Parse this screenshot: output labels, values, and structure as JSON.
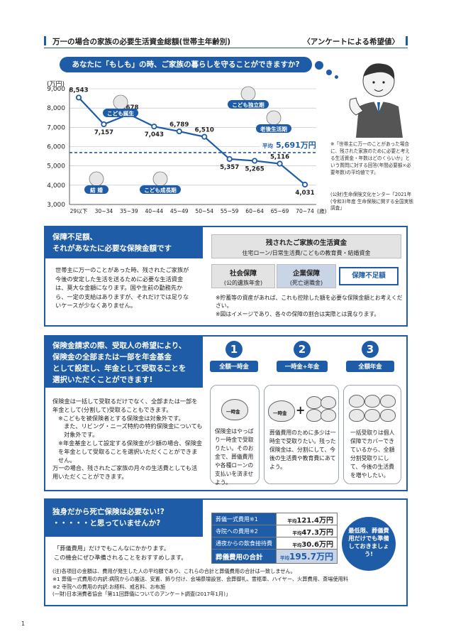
{
  "header": {
    "title": "万一の場合の家族の必要生活資金総額(世帯主年齢別)",
    "subtitle": "〈アンケートによる希望値〉"
  },
  "banner": "あなたに「もしも」の時、ご家族の暮らしを守ることができますか?",
  "chart_data": {
    "type": "line",
    "yunit": "(万円)",
    "ylim": [
      3000,
      9000
    ],
    "yticks": [
      "9,000",
      "8,000",
      "7,000",
      "6,000",
      "5,000",
      "4,000",
      "3,000"
    ],
    "categories": [
      "29以下",
      "30~34",
      "35~39",
      "40~44",
      "45~49",
      "50~54",
      "55~59",
      "60~64",
      "65~69",
      "70~74"
    ],
    "xunit": "(歳)",
    "values": [
      8543,
      7157,
      7678,
      7043,
      6789,
      6510,
      5357,
      5265,
      5116,
      4031
    ],
    "value_labels": [
      "8,543",
      "7,157",
      "7,678",
      "7,043",
      "6,789",
      "6,510",
      "5,357",
      "5,265",
      "5,116",
      "4,031"
    ],
    "average": 5691,
    "average_label_prefix": "平均",
    "average_label_value": "5,691万円",
    "life_events": [
      "こども誕生",
      "こども独立期",
      "老後生活期",
      "結 婚",
      "こども成長期"
    ]
  },
  "survey_note": "※「世帯主に万一のことがあった場合に、残された家族のために必要と考える生活資金・年数はどのくらいか」という質問に対する回答(年間必要額×必要年数)の平均値です。",
  "source": "(公財)生命保険文化センター「2021年(令和3)年度 生命保険に関する全国実態調査」",
  "section1": {
    "heading_1": "保障不足額、",
    "heading_2": "それがあなたに必要な保険金額です",
    "living_funds_title": "残されたご家族の生活資金",
    "living_funds_sub": "住宅ローン/日常生活費/こどもの教育費・結婚資金",
    "social_title": "社会保障",
    "social_sub": "(公的遺族年金)",
    "corporate_title": "企業保障",
    "corporate_sub": "(死亡退職金)",
    "shortfall": "保障不足額",
    "body": "世帯主に万一のことがあった時、残されたご家族が今後の安定した生活を送るために必要な生活資金は、莫大な金額になります。国や生前の勤務先から、一定の支給はありますが、それだけでは足りないケースが少なくありません。",
    "note1": "※貯蓄等の資産があれば、これも控除した額を必要な保険金額とお考えください。",
    "note2": "※図はイメージであり、各々の保障の割合は実際とは異なります。"
  },
  "section2": {
    "heading": [
      "保険金請求の際、受取人の希望により、",
      "保険金の全部または一部を年金基金",
      "として設定し、年金として受取ることを",
      "選択いただくことができます!"
    ],
    "body": [
      "保険金は一括して受取るだけでなく、全部または一部を年金として(分割して)受取ることもできます。",
      "※こどもを被保険者とする保険金は対象外です。",
      "また、リビング・ニーズ特約の特約保険金についても対象外です。",
      "※年金基金として設定する保険金が少額の場合、保険金を年金として受取ることを選択いただくことができません。",
      "万一の場合、残されたご家族の月々の生活費としても活用いただくことができます。"
    ],
    "options": [
      {
        "num": "1",
        "label": "全額一時金",
        "text": "保険金はやっぱり一時金で受取りたい。そのお金で、葬儀費用や各種ローンの支払いを済ませよう。"
      },
      {
        "num": "2",
        "label": "一時金+年金",
        "text": "葬儀費用のために多少は一時金で受取りたい。残った保険金は、分割にして、今後の生活費や教育費にあてよう。"
      },
      {
        "num": "3",
        "label": "全額年金",
        "text": "一括受取りは個人保障でカバーできているから、全額分割受取りにして、今後の生活費を増やしたい。"
      }
    ],
    "bag_lump": "一時金",
    "bag_pension": "年金"
  },
  "section3": {
    "heading_1": "独身だから死亡保険は必要ない!?",
    "heading_2": "・・・・・と思っていませんか?",
    "body_1": "「葬儀費用」だけでもこんなにかかります。",
    "body_2": "この機会にぜひ準備されることをおすすめします。",
    "rows": [
      {
        "label": "葬儀一式費用※1",
        "prefix": "平均",
        "value": "121.4万円"
      },
      {
        "label": "寺院への費用※2",
        "prefix": "平均",
        "value": "47.3万円"
      },
      {
        "label": "通夜からの飲食接待費",
        "prefix": "平均",
        "value": "30.6万円"
      }
    ],
    "total_label": "葬儀費用の合計",
    "total_prefix": "平均",
    "total_value": "195.7万円",
    "callout": "最低限、葬儀費用だけでも準備しておきましょう!",
    "notes": [
      "(注)各項目の金額は、費用が発生した人の平均額であり、これらの合計と葬儀費用の合計は一致しません。",
      "※1 葬儀一式費用の内訳:病院からの搬送、安置、飾り付け、会場祭壇設営、会葬御礼、霊柩車、ハイヤー、火葬費用、斎場使用料",
      "※2 寺院への費用の内訳:お経料、戒名料、お布施",
      "(一財)日本消費者協会「第11回葬儀についてのアンケート調査(2017年1月)」"
    ]
  },
  "page_number": "1",
  "colors": {
    "accent": "#1f5ca8",
    "gray": "#e3e3e3"
  }
}
